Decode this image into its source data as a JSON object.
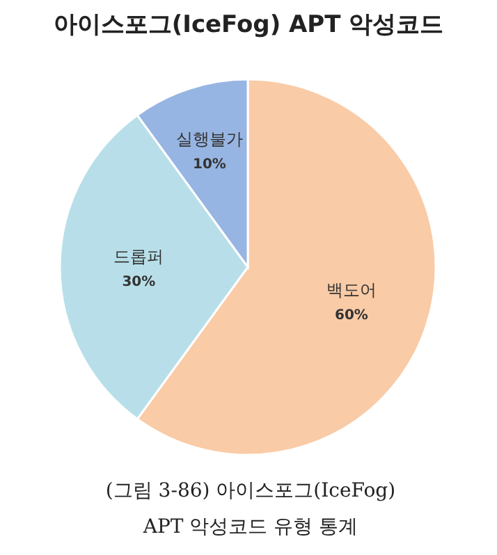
{
  "chart_data": {
    "type": "pie",
    "title": "아이스포그(IceFog) APT 악성코드",
    "categories": [
      "백도어",
      "드롭퍼",
      "실행불가"
    ],
    "values": [
      60,
      30,
      10
    ],
    "value_labels": [
      "60%",
      "30%",
      "10%"
    ],
    "colors": [
      "#f9cba6",
      "#b8dfe9",
      "#97b5e2"
    ],
    "annotations": [
      "(그림 3-86) 아이스포그(IceFog) APT 악성코드 유형 통계"
    ]
  }
}
